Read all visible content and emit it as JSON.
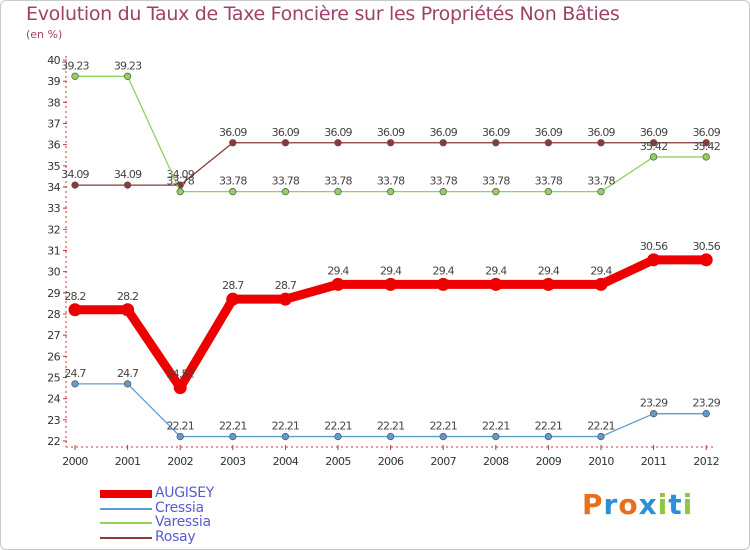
{
  "header": {
    "title": "Evolution du Taux de Taxe Foncière sur les Propriétés Non Bâties",
    "unit": "(en %)"
  },
  "logo": {
    "text": "Proxiti",
    "colors": [
      "#e8701a",
      "#2c8fd8",
      "#e8701a",
      "#2c8fd8",
      "#8dc63f",
      "#2c8fd8",
      "#8dc63f"
    ]
  },
  "chart_data": {
    "type": "line",
    "title": "Evolution du Taux de Taxe Foncière sur les Propriétés Non Bâties",
    "ylabel": "(en %)",
    "xlabel": "",
    "x": [
      "2000",
      "2001",
      "2002",
      "2003",
      "2004",
      "2005",
      "2006",
      "2007",
      "2008",
      "2009",
      "2010",
      "2011",
      "2012"
    ],
    "ylim": [
      22,
      40
    ],
    "yticks": [
      22,
      23,
      24,
      25,
      26,
      27,
      28,
      29,
      30,
      31,
      32,
      33,
      34,
      35,
      36,
      37,
      38,
      39,
      40
    ],
    "grid": false,
    "legend_position": "bottom-left",
    "series": [
      {
        "name": "AUGISEY",
        "color": "#ee0000",
        "values": [
          28.2,
          28.2,
          24.52,
          28.7,
          28.7,
          29.4,
          29.4,
          29.4,
          29.4,
          29.4,
          29.4,
          30.56,
          30.56
        ],
        "labels": [
          "28.2",
          "28.2",
          "24.52",
          "28.7",
          "28.7",
          "29.4",
          "29.4",
          "29.4",
          "29.4",
          "29.4",
          "29.4",
          "30.56",
          "30.56"
        ]
      },
      {
        "name": "Cressia",
        "color": "#5f9bd0",
        "values": [
          24.7,
          24.7,
          22.21,
          22.21,
          22.21,
          22.21,
          22.21,
          22.21,
          22.21,
          22.21,
          22.21,
          23.29,
          23.29
        ],
        "labels": [
          "24.7",
          "24.7",
          "22.21",
          "22.21",
          "22.21",
          "22.21",
          "22.21",
          "22.21",
          "22.21",
          "22.21",
          "22.21",
          "23.29",
          "23.29"
        ]
      },
      {
        "name": "Varessia",
        "color": "#8fd35a",
        "values": [
          39.23,
          39.23,
          33.78,
          33.78,
          33.78,
          33.78,
          33.78,
          33.78,
          33.78,
          33.78,
          33.78,
          35.42,
          35.42
        ],
        "labels": [
          "39.23",
          "39.23",
          "33.78",
          "33.78",
          "33.78",
          "33.78",
          "33.78",
          "33.78",
          "33.78",
          "33.78",
          "33.78",
          "35.42",
          "35.42"
        ]
      },
      {
        "name": "Rosay",
        "color": "#8b3a3a",
        "values": [
          34.09,
          34.09,
          34.09,
          36.09,
          36.09,
          36.09,
          36.09,
          36.09,
          36.09,
          36.09,
          36.09,
          36.09,
          36.09
        ],
        "labels": [
          "34.09",
          "34.09",
          "34.09",
          "36.09",
          "36.09",
          "36.09",
          "36.09",
          "36.09",
          "36.09",
          "36.09",
          "36.09",
          "36.09",
          "36.09"
        ]
      }
    ]
  }
}
